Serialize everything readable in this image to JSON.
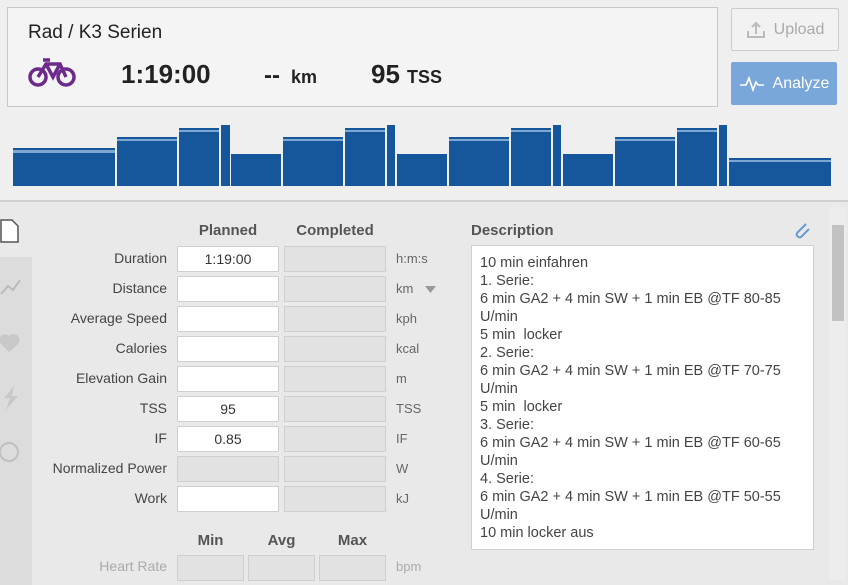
{
  "header": {
    "title": "Rad / K3 Serien",
    "duration": "1:19:00",
    "distance": "--",
    "distance_unit": "km",
    "tss": "95",
    "tss_unit": "TSS"
  },
  "buttons": {
    "upload": "Upload",
    "analyze": "Analyze"
  },
  "form": {
    "column_headers": [
      "Planned",
      "Completed"
    ],
    "rows": [
      {
        "label": "Duration",
        "planned": "1:19:00",
        "unit": "h:m:s"
      },
      {
        "label": "Distance",
        "unit": "km"
      },
      {
        "label": "Average Speed",
        "unit": "kph"
      },
      {
        "label": "Calories",
        "unit": "kcal"
      },
      {
        "label": "Elevation Gain",
        "unit": "m"
      },
      {
        "label": "TSS",
        "planned": "95",
        "unit": "TSS"
      },
      {
        "label": "IF",
        "planned": "0.85",
        "unit": "IF"
      },
      {
        "label": "Normalized Power",
        "unit": "W"
      },
      {
        "label": "Work",
        "unit": "kJ"
      }
    ]
  },
  "range": {
    "headers": [
      "Min",
      "Avg",
      "Max"
    ],
    "rows": [
      {
        "label": "Heart Rate",
        "unit": "bpm"
      }
    ]
  },
  "description": {
    "title": "Description",
    "lines": [
      "10 min einfahren",
      "1. Serie:",
      "6 min GA2 + 4 min SW + 1 min EB @TF 80-85 U/min",
      "5 min  locker",
      "2. Serie:",
      "6 min GA2 + 4 min SW + 1 min EB @TF 70-75 U/min",
      "5 min  locker",
      "3. Serie:",
      "6 min GA2 + 4 min SW + 1 min EB @TF 60-65 U/min",
      "4. Serie:",
      "6 min GA2 + 4 min SW + 1 min EB @TF 50-55 U/min",
      "10 min locker aus"
    ]
  }
}
